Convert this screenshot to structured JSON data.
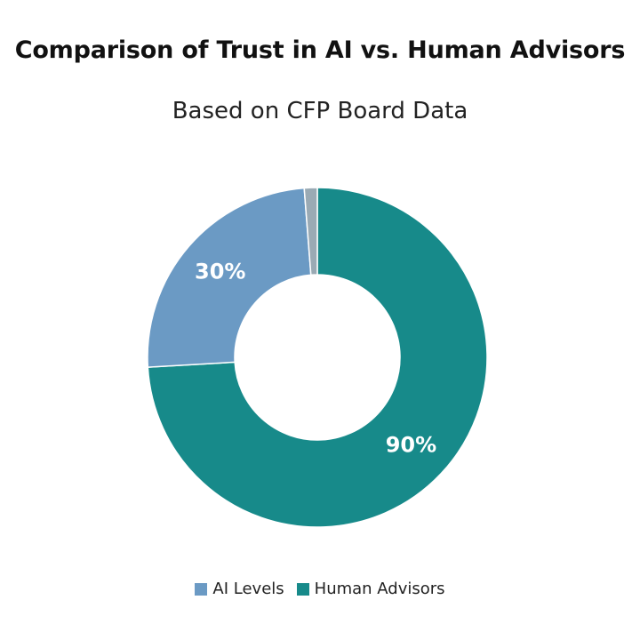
{
  "chart_data": {
    "type": "pie",
    "title": "Comparison of Trust in AI vs. Human Advisors",
    "subtitle": "Based on CFP Board Data",
    "donut": true,
    "categories": [
      "AI Levels",
      "Human Advisors",
      ""
    ],
    "values": [
      30,
      90,
      1.5
    ],
    "labels": [
      "30%",
      "90%",
      ""
    ],
    "colors": [
      "#6b9ac4",
      "#178a8a",
      "#9aaab4"
    ],
    "legend": {
      "placement": "bottom",
      "entries": [
        {
          "label": "AI Levels",
          "color": "#6b9ac4"
        },
        {
          "label": "Human Advisors",
          "color": "#178a8a"
        }
      ]
    }
  }
}
